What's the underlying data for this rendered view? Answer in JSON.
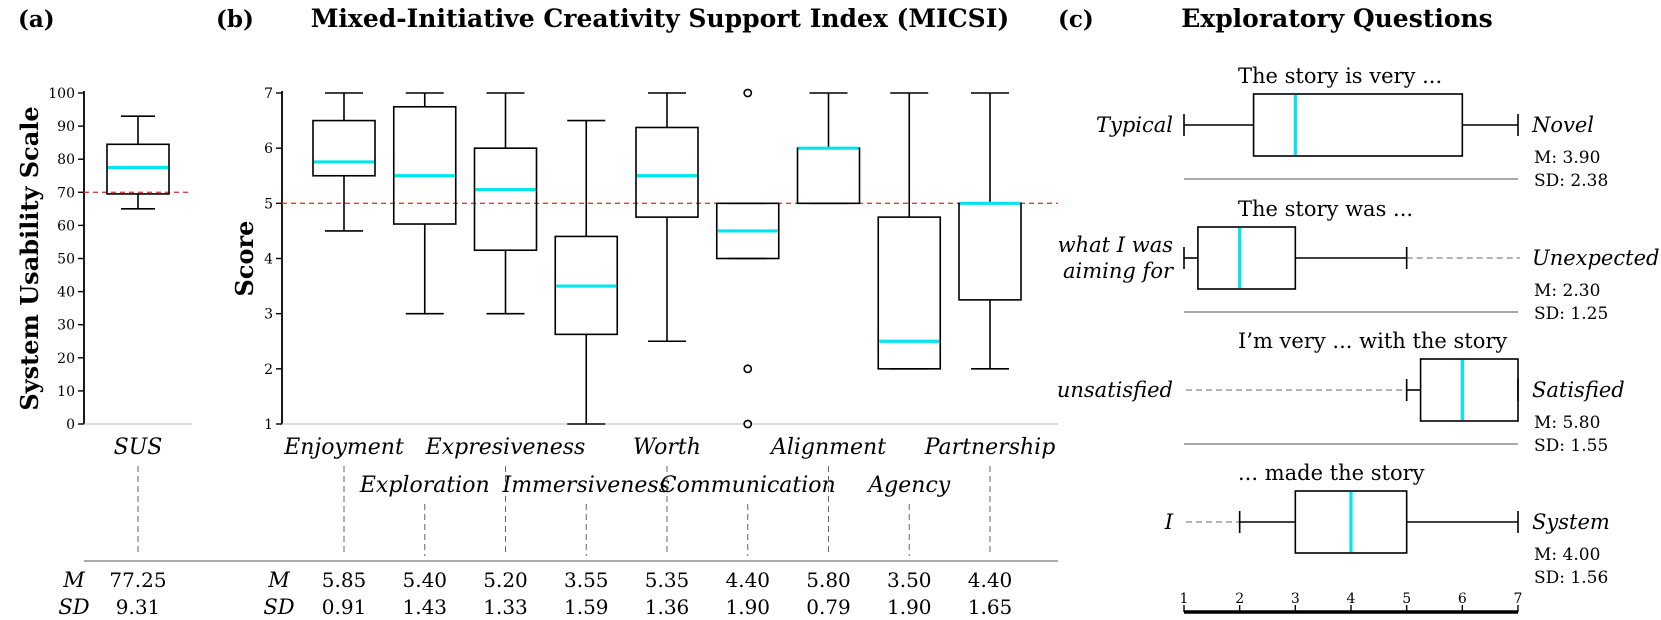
{
  "panels": {
    "a": {
      "letter": "(a)"
    },
    "b": {
      "letter": "(b)",
      "title": "Mixed-Initiative Creativity Support Index (MICSI)"
    },
    "c": {
      "letter": "(c)",
      "title": "Exploratory Questions"
    }
  },
  "chart_data": [
    {
      "id": "sus",
      "type": "box",
      "ylabel": "System Usability Scale",
      "ylim": [
        0,
        100
      ],
      "yticks": [
        0,
        10,
        20,
        30,
        40,
        50,
        60,
        70,
        80,
        90,
        100
      ],
      "reference_line": 70,
      "boxes": [
        {
          "label": "SUS",
          "min": 65,
          "q1": 69.5,
          "median": 77.5,
          "q3": 84.5,
          "max": 93,
          "mean": "77.25",
          "sd": "9.31",
          "outliers": []
        }
      ],
      "stat_labels": {
        "mean": "M",
        "sd": "SD"
      }
    },
    {
      "id": "micsi",
      "type": "box",
      "ylabel": "Score",
      "ylim": [
        1,
        7
      ],
      "yticks": [
        1,
        2,
        3,
        4,
        5,
        6,
        7
      ],
      "reference_line": 5,
      "boxes": [
        {
          "label": "Enjoyment",
          "min": 4.5,
          "q1": 5.5,
          "median": 5.75,
          "q3": 6.5,
          "max": 7,
          "mean": "5.85",
          "sd": "0.91",
          "outliers": []
        },
        {
          "label": "Exploration",
          "min": 3,
          "q1": 4.625,
          "median": 5.5,
          "q3": 6.75,
          "max": 7,
          "mean": "5.40",
          "sd": "1.43",
          "outliers": []
        },
        {
          "label": "Expresiveness",
          "min": 3,
          "q1": 4.15,
          "median": 5.25,
          "q3": 6,
          "max": 7,
          "mean": "5.20",
          "sd": "1.33",
          "outliers": []
        },
        {
          "label": "Immersiveness",
          "min": 1,
          "q1": 2.625,
          "median": 3.5,
          "q3": 4.4,
          "max": 6.5,
          "mean": "3.55",
          "sd": "1.59",
          "outliers": []
        },
        {
          "label": "Worth",
          "min": 2.5,
          "q1": 4.75,
          "median": 5.5,
          "q3": 6.375,
          "max": 7,
          "mean": "5.35",
          "sd": "1.36",
          "outliers": []
        },
        {
          "label": "Communication",
          "min": 4,
          "q1": 4,
          "median": 4.5,
          "q3": 5,
          "max": 5,
          "mean": "4.40",
          "sd": "1.90",
          "outliers": [
            7,
            2,
            1
          ]
        },
        {
          "label": "Alignment",
          "min": 5,
          "q1": 5,
          "median": 6,
          "q3": 6,
          "max": 7,
          "mean": "5.80",
          "sd": "0.79",
          "outliers": []
        },
        {
          "label": "Agency",
          "min": 2,
          "q1": 2,
          "median": 2.5,
          "q3": 4.75,
          "max": 7,
          "mean": "3.50",
          "sd": "1.90",
          "outliers": []
        },
        {
          "label": "Partnership",
          "min": 2,
          "q1": 3.25,
          "median": 5,
          "q3": 5,
          "max": 7,
          "mean": "4.40",
          "sd": "1.65",
          "outliers": []
        }
      ],
      "stat_labels": {
        "mean": "M",
        "sd": "SD"
      }
    },
    {
      "id": "exploratory",
      "type": "box",
      "orientation": "horizontal",
      "xlim": [
        1,
        7
      ],
      "xticks": [
        1,
        2,
        3,
        4,
        5,
        6,
        7
      ],
      "questions": [
        {
          "title": "The story is very ...",
          "left": "Typical",
          "right": "Novel",
          "min": 1,
          "q1": 2.25,
          "median": 3,
          "q3": 6,
          "max": 7,
          "m": "M: 3.90",
          "sd": "SD: 2.38",
          "left_dashed": false,
          "right_dashed": false
        },
        {
          "title": "The story was ...",
          "left": [
            "what I was",
            "aiming for"
          ],
          "right": "Unexpected",
          "min": 1,
          "q1": 1.25,
          "median": 2,
          "q3": 3,
          "max": 5,
          "m": "M: 2.30",
          "sd": "SD: 1.25",
          "left_dashed": false,
          "right_dashed": true
        },
        {
          "title": "I’m very ... with the story",
          "left": "unsatisfied",
          "right": "Satisfied",
          "min": 5,
          "q1": 5.25,
          "median": 6,
          "q3": 7,
          "max": 7,
          "m": "M: 5.80",
          "sd": "SD: 1.55",
          "left_dashed": true,
          "right_dashed": false
        },
        {
          "title": "... made the story",
          "left": "I",
          "right": "System",
          "min": 2,
          "q1": 3,
          "median": 4,
          "q3": 5,
          "max": 7,
          "m": "M: 4.00",
          "sd": "SD: 1.56",
          "left_dashed": true,
          "right_dashed": false
        }
      ]
    }
  ]
}
